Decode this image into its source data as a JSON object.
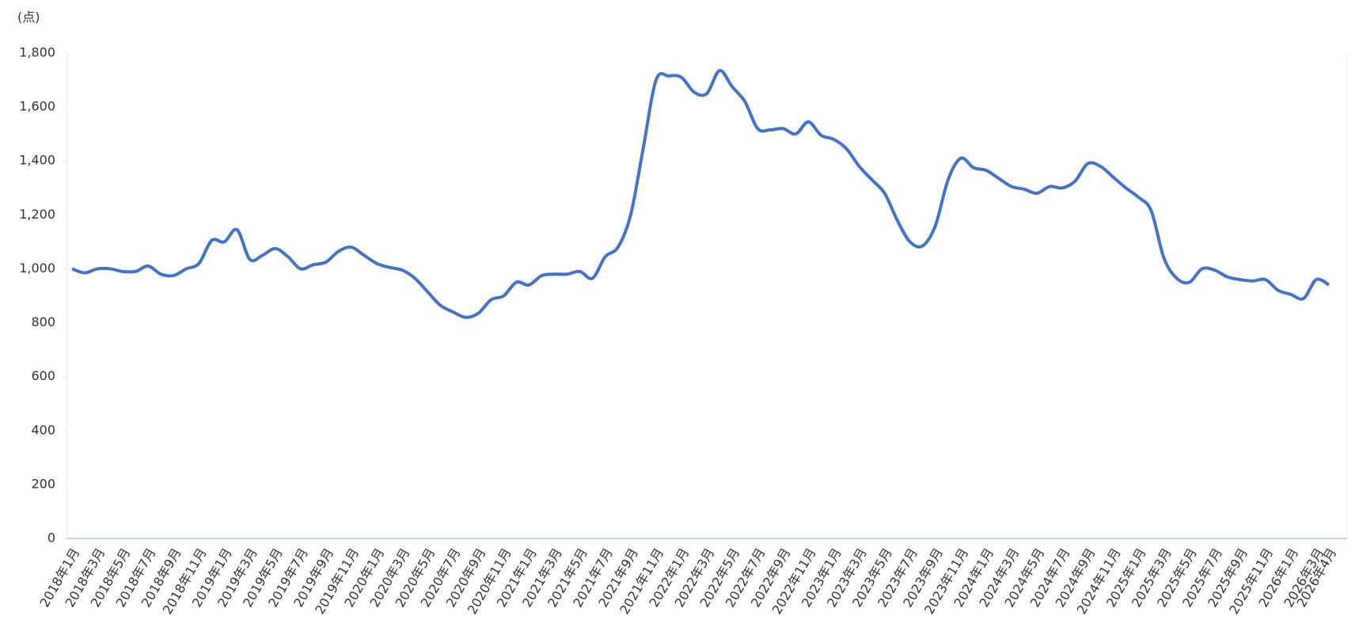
{
  "chart_data": {
    "type": "line",
    "y_label": "(点)",
    "categories": [
      "2018年1月",
      null,
      "2018年3月",
      null,
      "2018年5月",
      null,
      "2018年7月",
      null,
      "2018年9月",
      null,
      "2018年11月",
      null,
      "2019年1月",
      null,
      "2019年3月",
      null,
      "2019年5月",
      null,
      "2019年7月",
      null,
      "2019年9月",
      null,
      "2019年11月",
      null,
      "2020年1月",
      null,
      "2020年3月",
      null,
      "2020年5月",
      null,
      "2020年7月",
      null,
      "2020年9月",
      null,
      "2020年11月",
      null,
      "2021年1月",
      null,
      "2021年3月",
      null,
      "2021年5月",
      null,
      "2021年7月",
      null,
      "2021年9月",
      null,
      "2021年11月",
      null,
      "2022年1月",
      null,
      "2022年3月",
      null,
      "2022年5月",
      null,
      "2022年7月",
      null,
      "2022年9月",
      null,
      "2022年11月",
      null,
      "2023年1月",
      null,
      "2023年3月",
      null,
      "2023年5月",
      null,
      "2023年7月",
      null,
      "2023年9月",
      null,
      "2023年11月",
      null,
      "2024年1月",
      null,
      "2024年3月",
      null,
      "2024年5月",
      null,
      "2024年7月",
      null,
      "2024年9月",
      null,
      "2024年11月",
      null,
      "2025年1月",
      null,
      "2025年3月",
      null,
      "2025年5月",
      null,
      "2025年7月",
      null,
      "2025年9月",
      null,
      "2025年11月",
      null,
      "2026年1月",
      null,
      "2026年3月",
      "2026年4月"
    ],
    "series": [
      {
        "color": "#4472c4",
        "values": [
          1000,
          985,
          1000,
          1000,
          990,
          990,
          1010,
          980,
          975,
          1000,
          1020,
          1105,
          1100,
          1145,
          1035,
          1050,
          1075,
          1045,
          1000,
          1015,
          1025,
          1065,
          1080,
          1050,
          1020,
          1005,
          995,
          965,
          915,
          865,
          840,
          820,
          835,
          885,
          900,
          950,
          940,
          975,
          980,
          980,
          990,
          965,
          1045,
          1080,
          1200,
          1450,
          1700,
          1715,
          1710,
          1655,
          1650,
          1735,
          1675,
          1620,
          1520,
          1515,
          1520,
          1500,
          1545,
          1495,
          1480,
          1445,
          1380,
          1330,
          1280,
          1180,
          1100,
          1085,
          1160,
          1330,
          1410,
          1375,
          1365,
          1335,
          1305,
          1295,
          1280,
          1305,
          1300,
          1325,
          1390,
          1380,
          1340,
          1300,
          1265,
          1215,
          1040,
          965,
          950,
          1000,
          995,
          970,
          960,
          955,
          960,
          920,
          905,
          890,
          960,
          940
        ]
      }
    ],
    "ylim": [
      0,
      1800
    ],
    "yticks": [
      0,
      200,
      400,
      600,
      {
        "value": 800,
        "label": "800"
      },
      {
        "value": 1000,
        "label": "1,000"
      },
      {
        "value": 1200,
        "label": "1,200"
      },
      {
        "value": 1400,
        "label": "1,400"
      },
      {
        "value": 1600,
        "label": "1,600"
      },
      {
        "value": 1800,
        "label": "1,800"
      }
    ],
    "grid": false
  }
}
